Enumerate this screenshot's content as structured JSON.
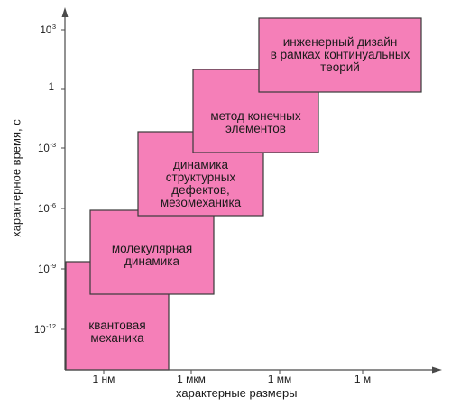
{
  "colors": {
    "box_fill": "#f57fb8",
    "box_stroke": "#3a3a3a",
    "axis": "#4a4a4a"
  },
  "axes": {
    "x_title": "характерные размеры",
    "y_title": "характерное время, с",
    "x_ticks": [
      "1 нм",
      "1 мкм",
      "1 мм",
      "1 м"
    ],
    "y_ticks": [
      {
        "base": "10",
        "exp": "3"
      },
      {
        "base": "1",
        "exp": ""
      },
      {
        "base": "10",
        "exp": "-3"
      },
      {
        "base": "10",
        "exp": "-6"
      },
      {
        "base": "10",
        "exp": "-9"
      },
      {
        "base": "10",
        "exp": "-12"
      }
    ]
  },
  "boxes": [
    {
      "label": "квантовая\nмеханика"
    },
    {
      "label": "молекулярная\nдинамика"
    },
    {
      "label": "динамика\nструктурных\nдефектов,\nмезомеханика"
    },
    {
      "label": "метод конечных\nэлементов"
    },
    {
      "label": "инженерный дизайн\nв рамках континуальных\nтеорий"
    }
  ]
}
